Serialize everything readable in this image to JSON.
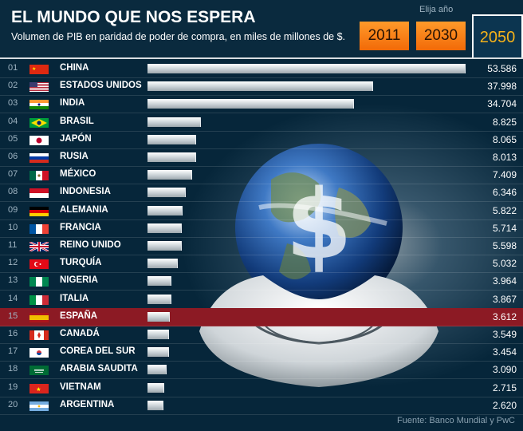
{
  "header": {
    "title": "EL MUNDO QUE NOS ESPERA",
    "subtitle": "Volumen de PIB en paridad de poder de compra, en miles de millones de $.",
    "year_prompt": "Elija año",
    "years": [
      "2011",
      "2030",
      "2050"
    ],
    "selected_year": "2050"
  },
  "chart_data": {
    "type": "bar",
    "orientation": "horizontal",
    "title": "EL MUNDO QUE NOS ESPERA",
    "subtitle": "Volumen de PIB en paridad de poder de compra, en miles de millones de $.",
    "ranks": [
      "01",
      "02",
      "03",
      "04",
      "05",
      "06",
      "07",
      "08",
      "09",
      "10",
      "11",
      "12",
      "13",
      "14",
      "15",
      "16",
      "17",
      "18",
      "19",
      "20"
    ],
    "categories": [
      "CHINA",
      "ESTADOS UNIDOS",
      "INDIA",
      "BRASIL",
      "JAPÓN",
      "RUSIA",
      "MÉXICO",
      "INDONESIA",
      "ALEMANIA",
      "FRANCIA",
      "REINO UNIDO",
      "TURQUÍA",
      "NIGERIA",
      "ITALIA",
      "ESPAÑA",
      "CANADÁ",
      "COREA DEL SUR",
      "ARABIA SAUDITA",
      "VIETNAM",
      "ARGENTINA"
    ],
    "values": [
      53586,
      37998,
      34704,
      8825,
      8065,
      8013,
      7409,
      6346,
      5822,
      5714,
      5598,
      5032,
      3964,
      3867,
      3612,
      3549,
      3454,
      3090,
      2715,
      2620
    ],
    "value_labels": [
      "53.586",
      "37.998",
      "34.704",
      "8.825",
      "8.065",
      "8.013",
      "7.409",
      "6.346",
      "5.822",
      "5.714",
      "5.598",
      "5.032",
      "3.964",
      "3.867",
      "3.612",
      "3.549",
      "3.454",
      "3.090",
      "2.715",
      "2.620"
    ],
    "highlight": "ESPAÑA",
    "highlight_color": "#8c1a24",
    "bar_color": "#d6dde2"
  },
  "flags": [
    "china",
    "usa",
    "india",
    "brazil",
    "japan",
    "russia",
    "mexico",
    "indonesia",
    "germany",
    "france",
    "uk",
    "turkey",
    "nigeria",
    "italy",
    "spain",
    "canada",
    "korea",
    "saudi",
    "vietnam",
    "argentina"
  ],
  "illustration": "hands-holding-globe-with-dollar-sign",
  "source": "Fuente: Banco Mundial y PwC",
  "colors": {
    "background": "#06263a",
    "accent": "#f5b21a",
    "button": "#f26a08"
  }
}
